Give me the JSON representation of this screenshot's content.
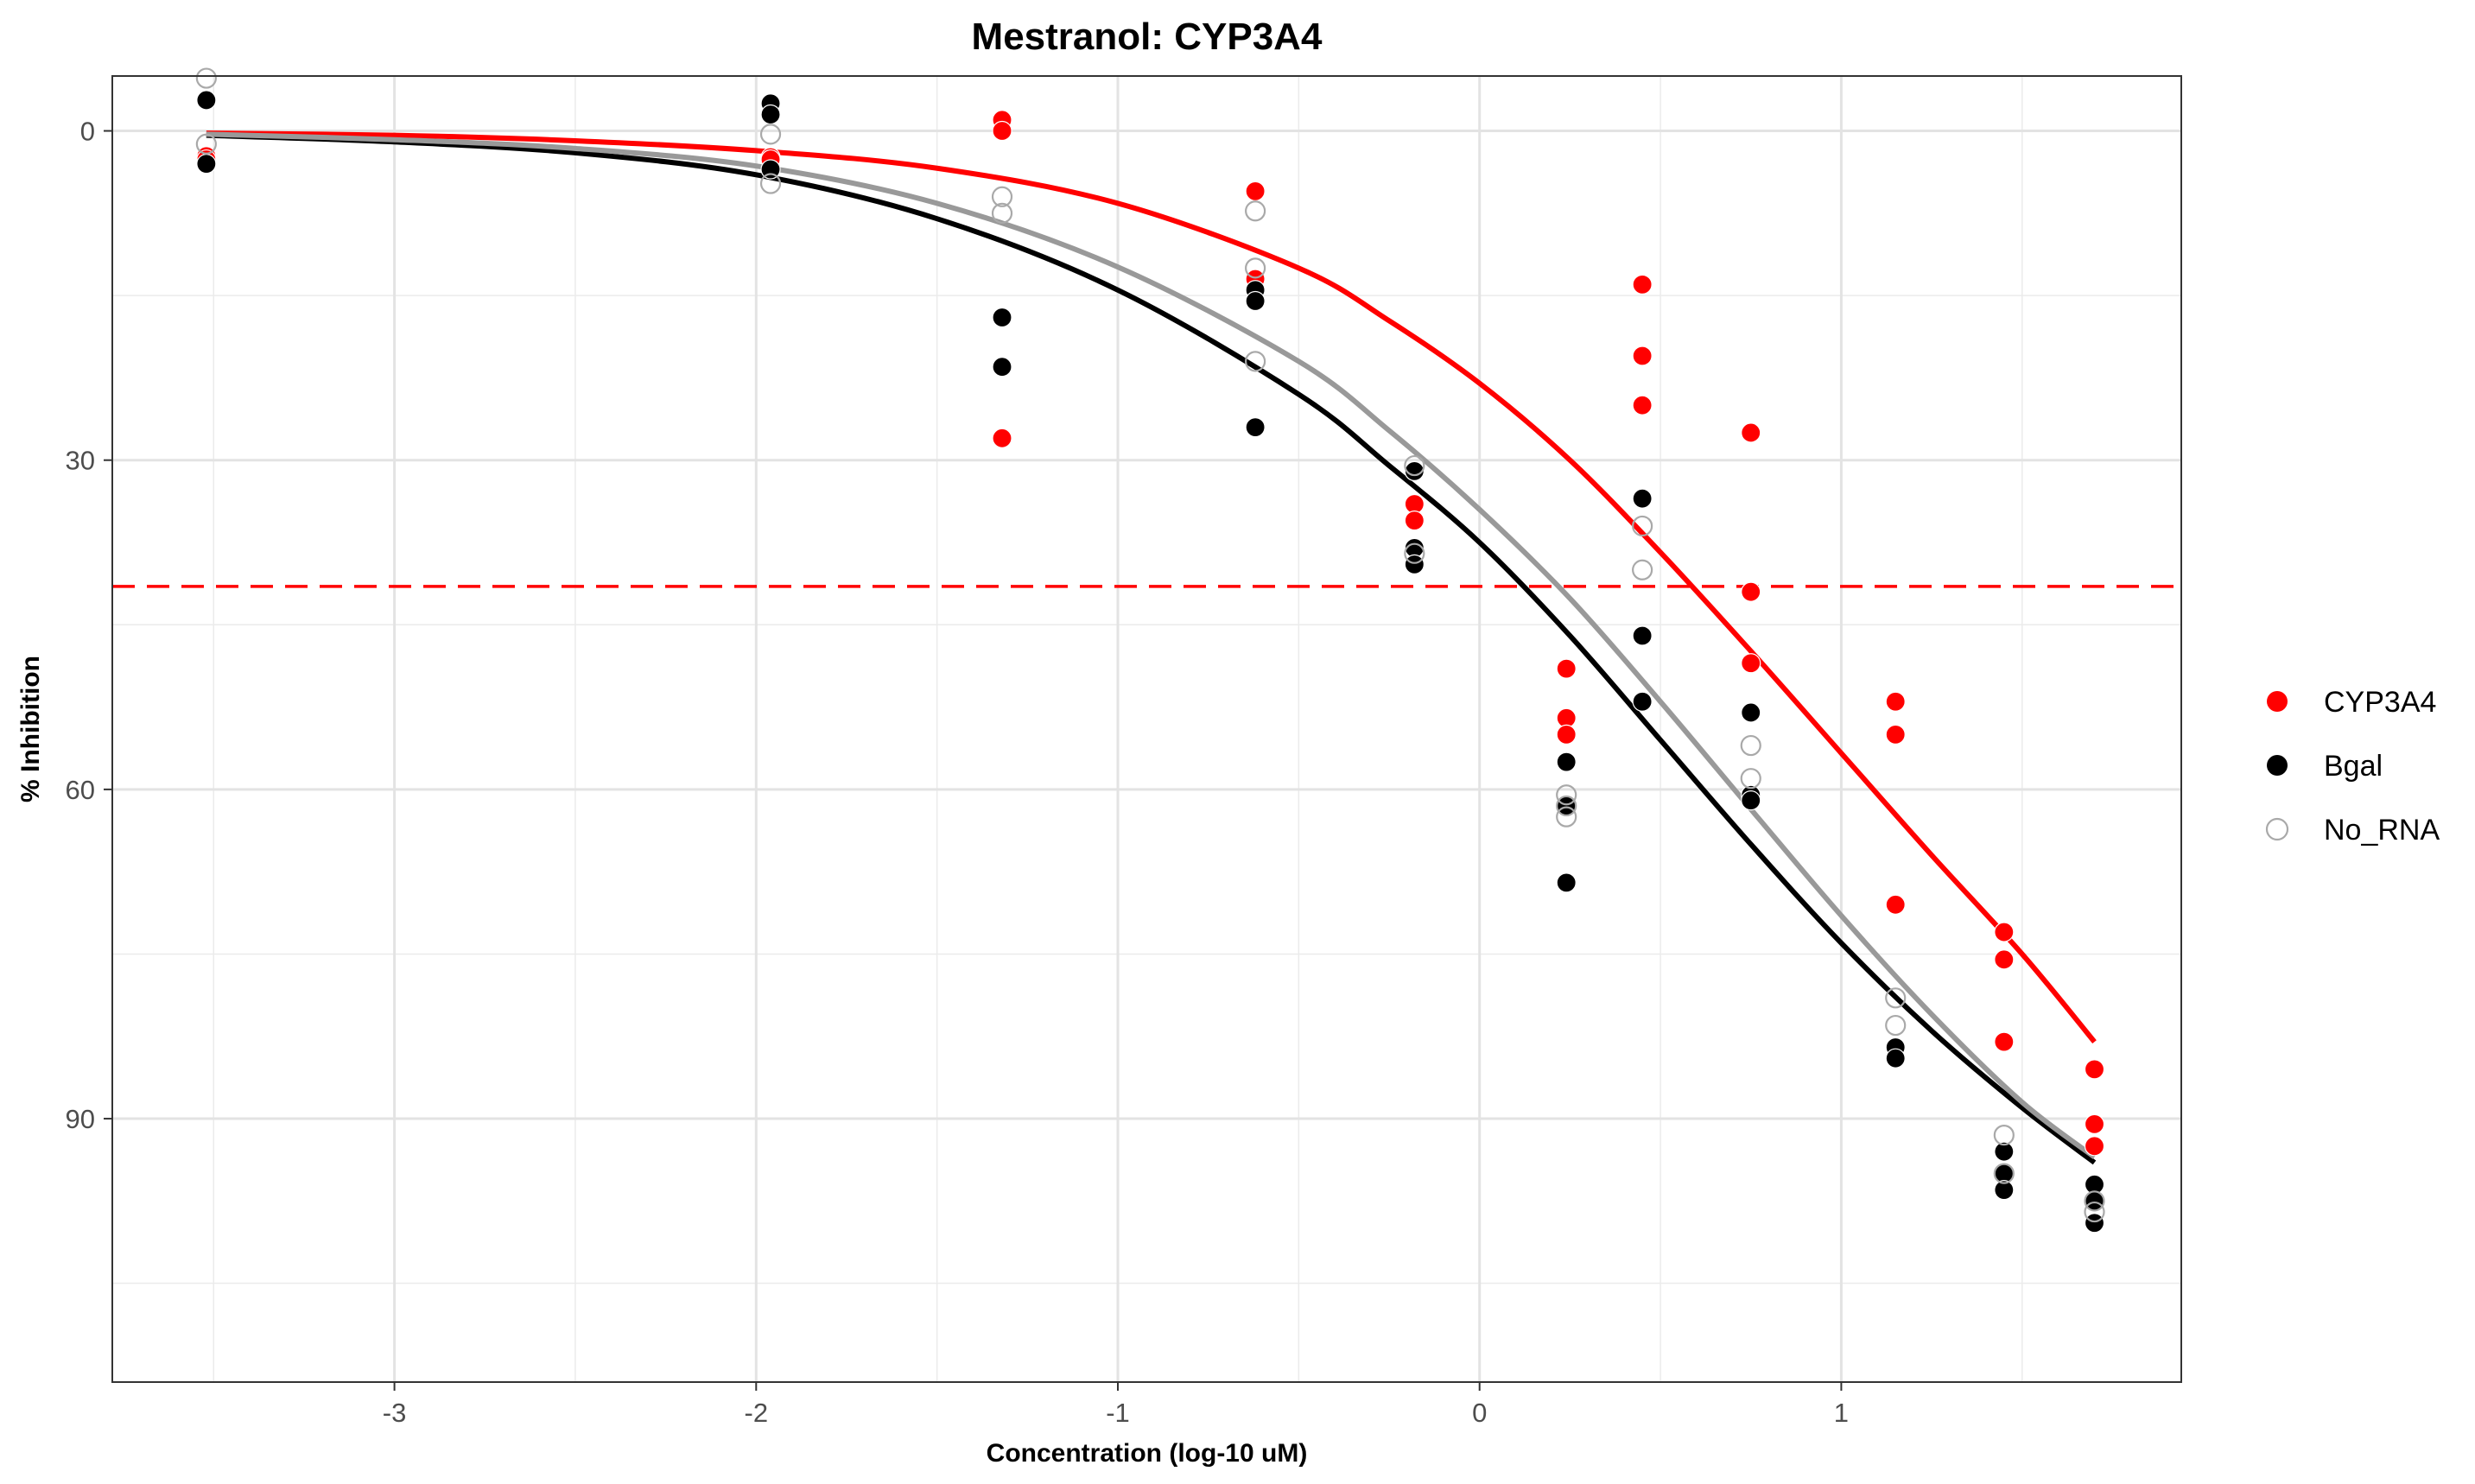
{
  "chart_data": {
    "type": "scatter",
    "title": "Mestranol: CYP3A4",
    "xlabel": "Concentration (log-10 uM)",
    "ylabel": "% Inhibition",
    "xlim": [
      -3.78,
      1.94
    ],
    "ylim": [
      114,
      -5
    ],
    "y_reversed": true,
    "x_ticks": [
      -3,
      -2,
      -1,
      0,
      1
    ],
    "y_ticks": [
      0,
      30,
      60,
      90
    ],
    "grid": true,
    "legend_position": "right",
    "reference_line": {
      "y": 41.5,
      "color": "#ff0000",
      "style": "dashed"
    },
    "series": [
      {
        "name": "CYP3A4",
        "color": "#ff0000",
        "marker": "filled",
        "x": [
          -3.52,
          -3.52,
          -1.96,
          -1.96,
          -1.32,
          -1.32,
          -1.32,
          -0.62,
          -0.62,
          -0.18,
          -0.18,
          -0.18,
          0.24,
          0.24,
          0.24,
          0.45,
          0.45,
          0.45,
          0.75,
          0.75,
          0.75,
          1.15,
          1.15,
          1.15,
          1.45,
          1.45,
          1.45,
          1.7,
          1.7,
          1.7
        ],
        "y": [
          2.3,
          2.6,
          2.4,
          2.6,
          -1.0,
          0.0,
          28.0,
          5.5,
          13.5,
          34.0,
          35.5,
          31.0,
          49.0,
          53.5,
          55.0,
          14.0,
          20.5,
          25.0,
          27.5,
          42.0,
          48.5,
          52.0,
          55.0,
          70.5,
          73.0,
          75.5,
          83.0,
          85.5,
          90.5,
          92.5
        ],
        "curve": {
          "x": [
            -3.52,
            -3.0,
            -2.5,
            -2.0,
            -1.5,
            -1.0,
            -0.5,
            -0.25,
            0.0,
            0.25,
            0.5,
            0.75,
            1.0,
            1.25,
            1.5,
            1.7
          ],
          "y": [
            0.2,
            0.4,
            0.9,
            1.8,
            3.4,
            6.6,
            12.5,
            17.3,
            23.0,
            30.0,
            38.4,
            47.4,
            56.7,
            66.0,
            75.0,
            83.0
          ]
        }
      },
      {
        "name": "Bgal",
        "color": "#000000",
        "marker": "filled",
        "x": [
          -3.52,
          -3.52,
          -1.96,
          -1.96,
          -1.96,
          -1.32,
          -1.32,
          -0.62,
          -0.62,
          -0.62,
          -0.18,
          -0.18,
          -0.18,
          0.24,
          0.24,
          0.24,
          0.45,
          0.45,
          0.45,
          0.75,
          0.75,
          0.75,
          1.15,
          1.15,
          1.45,
          1.45,
          1.45,
          1.7,
          1.7,
          1.7
        ],
        "y": [
          3.0,
          -2.8,
          3.5,
          -2.5,
          -1.5,
          17.0,
          21.5,
          14.5,
          15.5,
          27.0,
          31.0,
          38.0,
          39.5,
          57.5,
          61.5,
          68.5,
          33.5,
          46.0,
          52.0,
          53.0,
          60.5,
          61.0,
          83.5,
          84.5,
          93.0,
          95.0,
          96.5,
          96.0,
          97.5,
          99.5
        ],
        "curve": {
          "x": [
            -3.52,
            -3.0,
            -2.5,
            -2.0,
            -1.5,
            -1.0,
            -0.5,
            -0.25,
            0.0,
            0.25,
            0.5,
            0.75,
            1.0,
            1.25,
            1.5,
            1.7
          ],
          "y": [
            0.4,
            1.0,
            2.0,
            4.0,
            8.0,
            14.5,
            24.0,
            30.5,
            37.5,
            46.0,
            55.5,
            65.0,
            74.0,
            82.0,
            89.0,
            94.0
          ]
        }
      },
      {
        "name": "No_RNA",
        "color": "#a9a9a9",
        "marker": "open",
        "x": [
          -3.52,
          -3.52,
          -1.96,
          -1.96,
          -1.32,
          -1.32,
          -0.62,
          -0.62,
          -0.62,
          -0.18,
          -0.18,
          0.24,
          0.24,
          0.24,
          0.45,
          0.45,
          0.75,
          0.75,
          1.15,
          1.15,
          1.45,
          1.45,
          1.7,
          1.7
        ],
        "y": [
          -4.8,
          1.2,
          0.3,
          4.8,
          6.0,
          7.5,
          7.3,
          12.5,
          21.0,
          30.5,
          38.5,
          60.5,
          61.5,
          62.5,
          36.0,
          40.0,
          56.0,
          59.0,
          79.0,
          81.5,
          91.5,
          95.0,
          97.5,
          98.5
        ],
        "curve": {
          "x": [
            -3.52,
            -3.0,
            -2.5,
            -2.0,
            -1.5,
            -1.0,
            -0.5,
            -0.25,
            0.0,
            0.25,
            0.5,
            0.75,
            1.0,
            1.25,
            1.5,
            1.7
          ],
          "y": [
            0.3,
            0.8,
            1.6,
            3.2,
            6.6,
            12.4,
            21.0,
            27.3,
            34.5,
            42.6,
            52.0,
            61.8,
            71.5,
            80.5,
            88.5,
            93.5
          ]
        }
      }
    ]
  }
}
